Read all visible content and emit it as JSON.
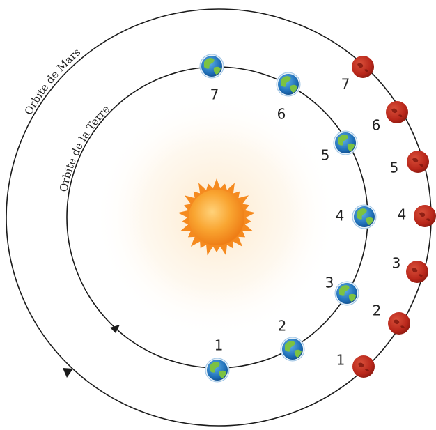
{
  "labels": {
    "mars_orbit": "Orbite de Mars",
    "earth_orbit": "Orbite de la Terre"
  },
  "earth_positions": [
    {
      "label": "1"
    },
    {
      "label": "2"
    },
    {
      "label": "3"
    },
    {
      "label": "4"
    },
    {
      "label": "5"
    },
    {
      "label": "6"
    },
    {
      "label": "7"
    }
  ],
  "mars_positions": [
    {
      "label": "1"
    },
    {
      "label": "2"
    },
    {
      "label": "3"
    },
    {
      "label": "4"
    },
    {
      "label": "5"
    },
    {
      "label": "6"
    },
    {
      "label": "7"
    }
  ],
  "colors": {
    "orbit_line": "#1a1a1a",
    "sun_core": "#f7a12c",
    "sun_rays": "#f58a1f",
    "earth_ocean": "#1f6fb8",
    "earth_land": "#7cc242",
    "mars": "#b8261a",
    "text": "#222222"
  },
  "icons": {
    "sun": "sun-icon",
    "earth": "earth-icon",
    "mars": "mars-icon",
    "direction": "arrowhead-icon"
  }
}
